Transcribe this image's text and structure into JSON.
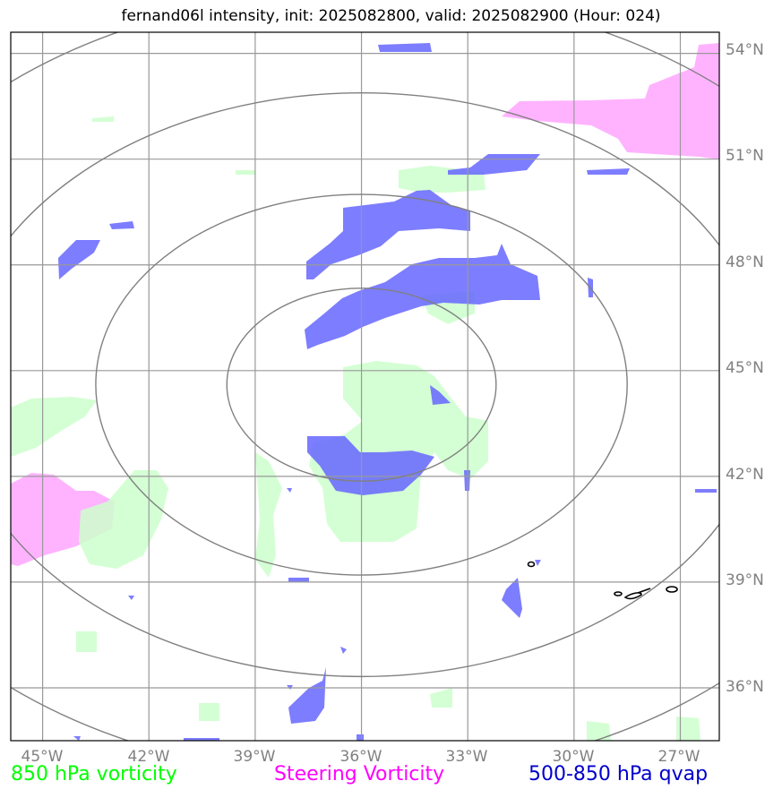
{
  "title": "fernand06l intensity, init: 2025082800, valid: 2025082900 (Hour: 024)",
  "lon_labels": [
    "45°W",
    "42°W",
    "39°W",
    "36°W",
    "33°W",
    "30°W",
    "27°W"
  ],
  "lat_labels": [
    "54°N",
    "51°N",
    "48°N",
    "45°N",
    "42°N",
    "39°N",
    "36°N"
  ],
  "legend": {
    "vorticity": "850 hPa vorticity",
    "steering": "Steering Vorticity",
    "qvap": "500-850 hPa qvap"
  },
  "colors": {
    "vorticity": "#ccffcc",
    "steering": "#ffb3ff",
    "qvap": "#6666ff",
    "grid": "#999999",
    "rings": "#808080"
  },
  "extent": {
    "lon": [
      -45.9,
      -25.9
    ],
    "lat": [
      34.5,
      54.6
    ]
  },
  "ring_center": {
    "lon": -36,
    "lat": 44.6
  },
  "ring_radii_deg": [
    3.8,
    7.5,
    11.5,
    15.5
  ]
}
